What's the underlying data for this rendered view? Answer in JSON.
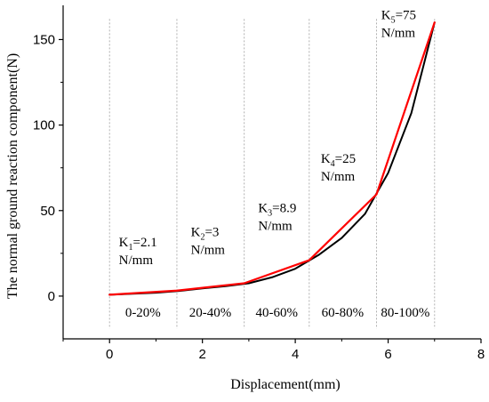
{
  "chart_data": {
    "type": "line",
    "xlabel": "Displacement(mm)",
    "ylabel": "The normal ground reaction component(N)",
    "xlim": [
      -1,
      8
    ],
    "ylim": [
      -25,
      170
    ],
    "x_ticks": [
      0,
      2,
      4,
      6,
      8
    ],
    "y_ticks": [
      0,
      50,
      100,
      150
    ],
    "x_tick_labels": [
      "0",
      "2",
      "4",
      "6",
      "8"
    ],
    "y_tick_labels": [
      "0",
      "50",
      "100",
      "150"
    ],
    "grid": false,
    "legend": "none",
    "series": [
      {
        "color": "#000000",
        "style": "solid",
        "x": [
          0,
          0.5,
          1,
          1.5,
          2,
          2.5,
          3,
          3.5,
          4,
          4.5,
          5,
          5.5,
          6,
          6.5,
          7
        ],
        "y": [
          0.8,
          1.4,
          2.0,
          3.0,
          4.5,
          5.8,
          7.5,
          11.0,
          16.0,
          24.0,
          34.0,
          48.0,
          72.0,
          107.0,
          160.0
        ]
      },
      {
        "color": "#ff0000",
        "style": "solid",
        "x": [
          0,
          1.45,
          2.9,
          4.3,
          5.75,
          7.0
        ],
        "y": [
          0.8,
          3.2,
          7.5,
          21.0,
          59.5,
          160.0
        ]
      }
    ],
    "dividers": [
      {
        "x": 0,
        "y_top": 162,
        "color": "#b0b0b0",
        "style": "dotted"
      },
      {
        "x": 1.45,
        "y_top": 162,
        "color": "#b0b0b0",
        "style": "dotted"
      },
      {
        "x": 2.9,
        "y_top": 162,
        "color": "#b0b0b0",
        "style": "dotted"
      },
      {
        "x": 4.3,
        "y_top": 162,
        "color": "#b0b0b0",
        "style": "dotted"
      },
      {
        "x": 5.75,
        "y_top": 162,
        "color": "#b0b0b0",
        "style": "dotted"
      },
      {
        "x": 7.0,
        "y_top": 162,
        "color": "#b0b0b0",
        "style": "dotted"
      }
    ],
    "stiffness_annotations": [
      {
        "sub": "1",
        "value": "=2.1",
        "unit": "N/mm",
        "x": 0.2,
        "y": 29
      },
      {
        "sub": "2",
        "value": "=3",
        "unit": "N/mm",
        "x": 1.75,
        "y": 35
      },
      {
        "sub": "3",
        "value": "=8.9",
        "unit": "N/mm",
        "x": 3.2,
        "y": 49
      },
      {
        "sub": "4",
        "value": "=25",
        "unit": "N/mm",
        "x": 4.55,
        "y": 78
      },
      {
        "sub": "5",
        "value": "=75",
        "unit": "N/mm",
        "x": 5.85,
        "y": 162
      }
    ],
    "range_labels": [
      {
        "text": "0-20%",
        "x": 0.72
      },
      {
        "text": "20-40%",
        "x": 2.17
      },
      {
        "text": "40-60%",
        "x": 3.6
      },
      {
        "text": "60-80%",
        "x": 5.02
      },
      {
        "text": "80-100%",
        "x": 6.37
      }
    ],
    "range_labels_y": -12
  }
}
